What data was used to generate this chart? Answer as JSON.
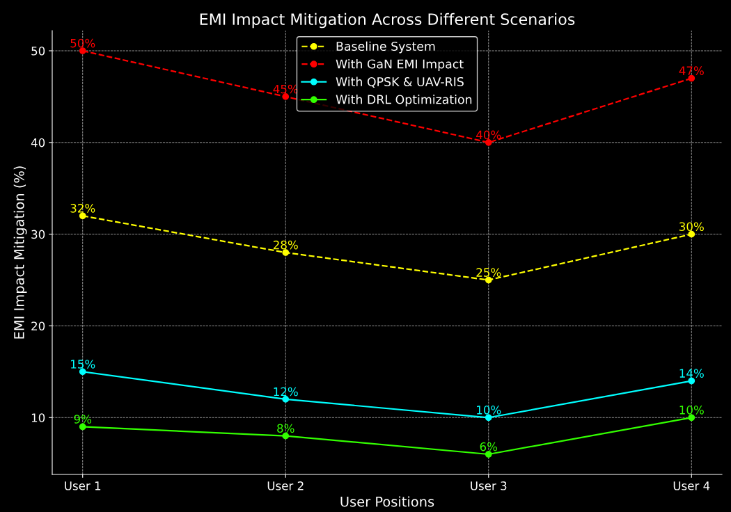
{
  "chart_data": {
    "type": "line",
    "title": "EMI Impact Mitigation Across Different Scenarios",
    "xlabel": "User Positions",
    "ylabel": "EMI Impact Mitigation (%)",
    "categories": [
      "User 1",
      "User 2",
      "User 3",
      "User 4"
    ],
    "series": [
      {
        "name": "Baseline System",
        "color": "#ffff00",
        "line_style": "dashed",
        "values": [
          32,
          28,
          25,
          30
        ],
        "value_labels": [
          "32%",
          "28%",
          "25%",
          "30%"
        ]
      },
      {
        "name": "With GaN EMI Impact",
        "color": "#ff0000",
        "line_style": "dashed",
        "values": [
          50,
          45,
          40,
          47
        ],
        "value_labels": [
          "50%",
          "45%",
          "40%",
          "47%"
        ]
      },
      {
        "name": "With QPSK & UAV-RIS",
        "color": "#00ffff",
        "line_style": "solid",
        "values": [
          15,
          12,
          10,
          14
        ],
        "value_labels": [
          "15%",
          "12%",
          "10%",
          "14%"
        ]
      },
      {
        "name": "With DRL Optimization",
        "color": "#33ff00",
        "line_style": "solid",
        "values": [
          9,
          8,
          6,
          10
        ],
        "value_labels": [
          "9%",
          "8%",
          "6%",
          "10%"
        ]
      }
    ],
    "ylim": [
      3.8,
      52.2
    ],
    "yticks": [
      10,
      20,
      30,
      40,
      50
    ],
    "grid": true,
    "legend": "upper center",
    "marker": "circle"
  }
}
